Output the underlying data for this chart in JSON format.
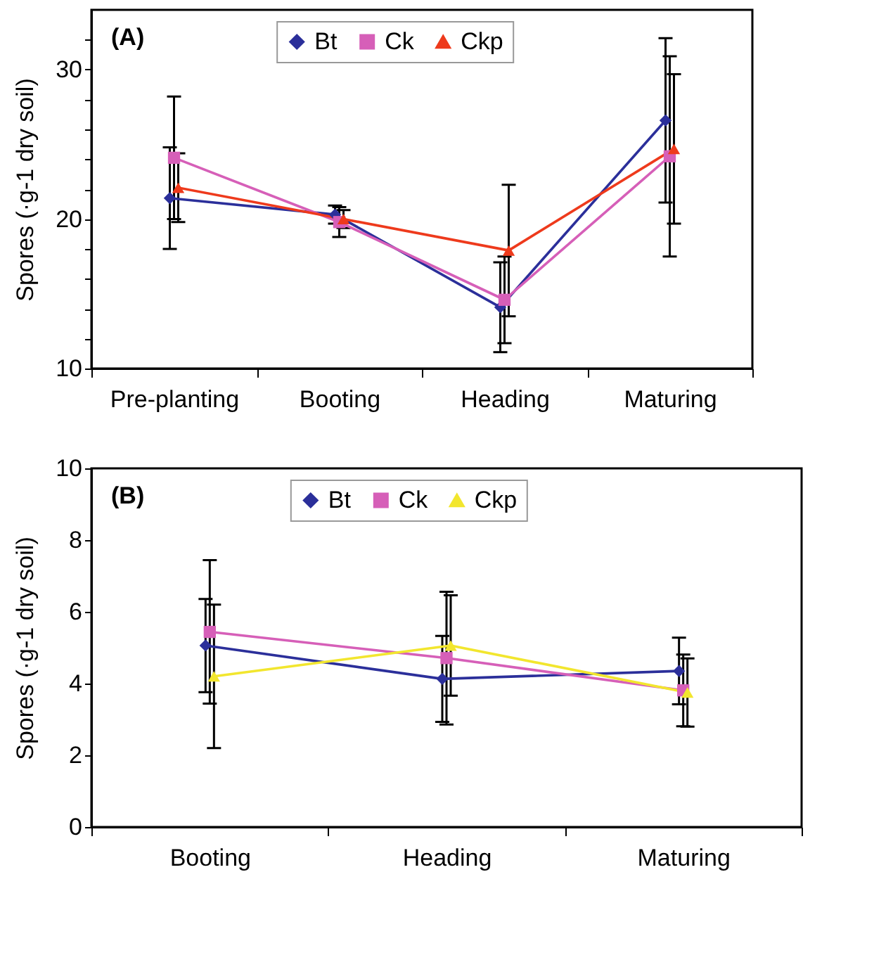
{
  "chart_data": [
    {
      "type": "line",
      "ylabel": "Spores (·g-1 dry soil)",
      "annotations": [
        "(A)"
      ],
      "categories": [
        "Pre-planting",
        "Booting",
        "Heading",
        "Maturing"
      ],
      "ylim": [
        10,
        34
      ],
      "yticks": [
        10,
        {
          "value": 12,
          "label": null
        },
        {
          "value": 14,
          "label": null
        },
        {
          "value": 16,
          "label": null
        },
        {
          "value": 18,
          "label": null
        },
        20,
        {
          "value": 22,
          "label": null
        },
        {
          "value": 24,
          "label": null
        },
        {
          "value": 26,
          "label": null
        },
        {
          "value": 28,
          "label": null
        },
        30,
        {
          "value": 32,
          "label": null
        }
      ],
      "grid": false,
      "legend": "top",
      "series": [
        {
          "name": "Bt",
          "color": "#2b2f9a",
          "marker": "diamond",
          "values": [
            21.4,
            20.3,
            14.1,
            26.6
          ],
          "errors": [
            3.4,
            0.6,
            3.0,
            5.5
          ]
        },
        {
          "name": "Ck",
          "color": "#d65fb8",
          "marker": "square",
          "values": [
            24.1,
            19.8,
            14.6,
            24.2
          ],
          "errors": [
            4.1,
            1.0,
            2.9,
            6.7
          ]
        },
        {
          "name": "Ckp",
          "color": "#ee3a1c",
          "marker": "triangle",
          "values": [
            22.1,
            20.0,
            17.9,
            24.7
          ],
          "errors": [
            2.3,
            0.6,
            4.4,
            5.0
          ]
        }
      ]
    },
    {
      "type": "line",
      "ylabel": "Spores (·g-1 dry soil)",
      "annotations": [
        "(B)"
      ],
      "categories": [
        "Booting",
        "Heading",
        "Maturing"
      ],
      "ylim": [
        0,
        10
      ],
      "yticks": [
        0,
        2,
        4,
        6,
        8,
        10
      ],
      "grid": false,
      "legend": "top",
      "series": [
        {
          "name": "Bt",
          "color": "#2b2f9a",
          "marker": "diamond",
          "values": [
            5.06,
            4.13,
            4.35
          ],
          "errors": [
            1.3,
            1.2,
            0.93
          ]
        },
        {
          "name": "Ck",
          "color": "#d65fb8",
          "marker": "square",
          "values": [
            5.44,
            4.71,
            3.81
          ],
          "errors": [
            2.0,
            1.85,
            1.0
          ]
        },
        {
          "name": "Ckp",
          "color": "#f2e62e",
          "marker": "triangle",
          "values": [
            4.2,
            5.06,
            3.75
          ],
          "errors": [
            2.0,
            1.4,
            0.95
          ]
        }
      ]
    }
  ]
}
